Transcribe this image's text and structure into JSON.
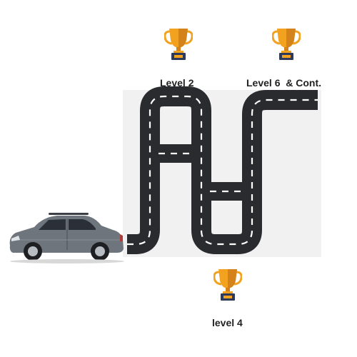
{
  "colors": {
    "road": "#2a2b2e",
    "road_edge": "#1c1c1f",
    "lane_marking": "#ffffff",
    "board_background": "#f1f1f1",
    "trophy_gold": "#f2a21f",
    "trophy_gold_dark": "#d4831a",
    "trophy_base": "#2d3a5c",
    "car_body": "#6f757d",
    "car_window": "#2b3038"
  },
  "levels": [
    {
      "label": "Level 2",
      "icon": "trophy-icon"
    },
    {
      "label": "Level 6  & Cont.",
      "icon": "trophy-icon"
    },
    {
      "label": "level 4",
      "icon": "trophy-icon"
    }
  ],
  "vehicle": {
    "icon": "suv-car-icon"
  }
}
